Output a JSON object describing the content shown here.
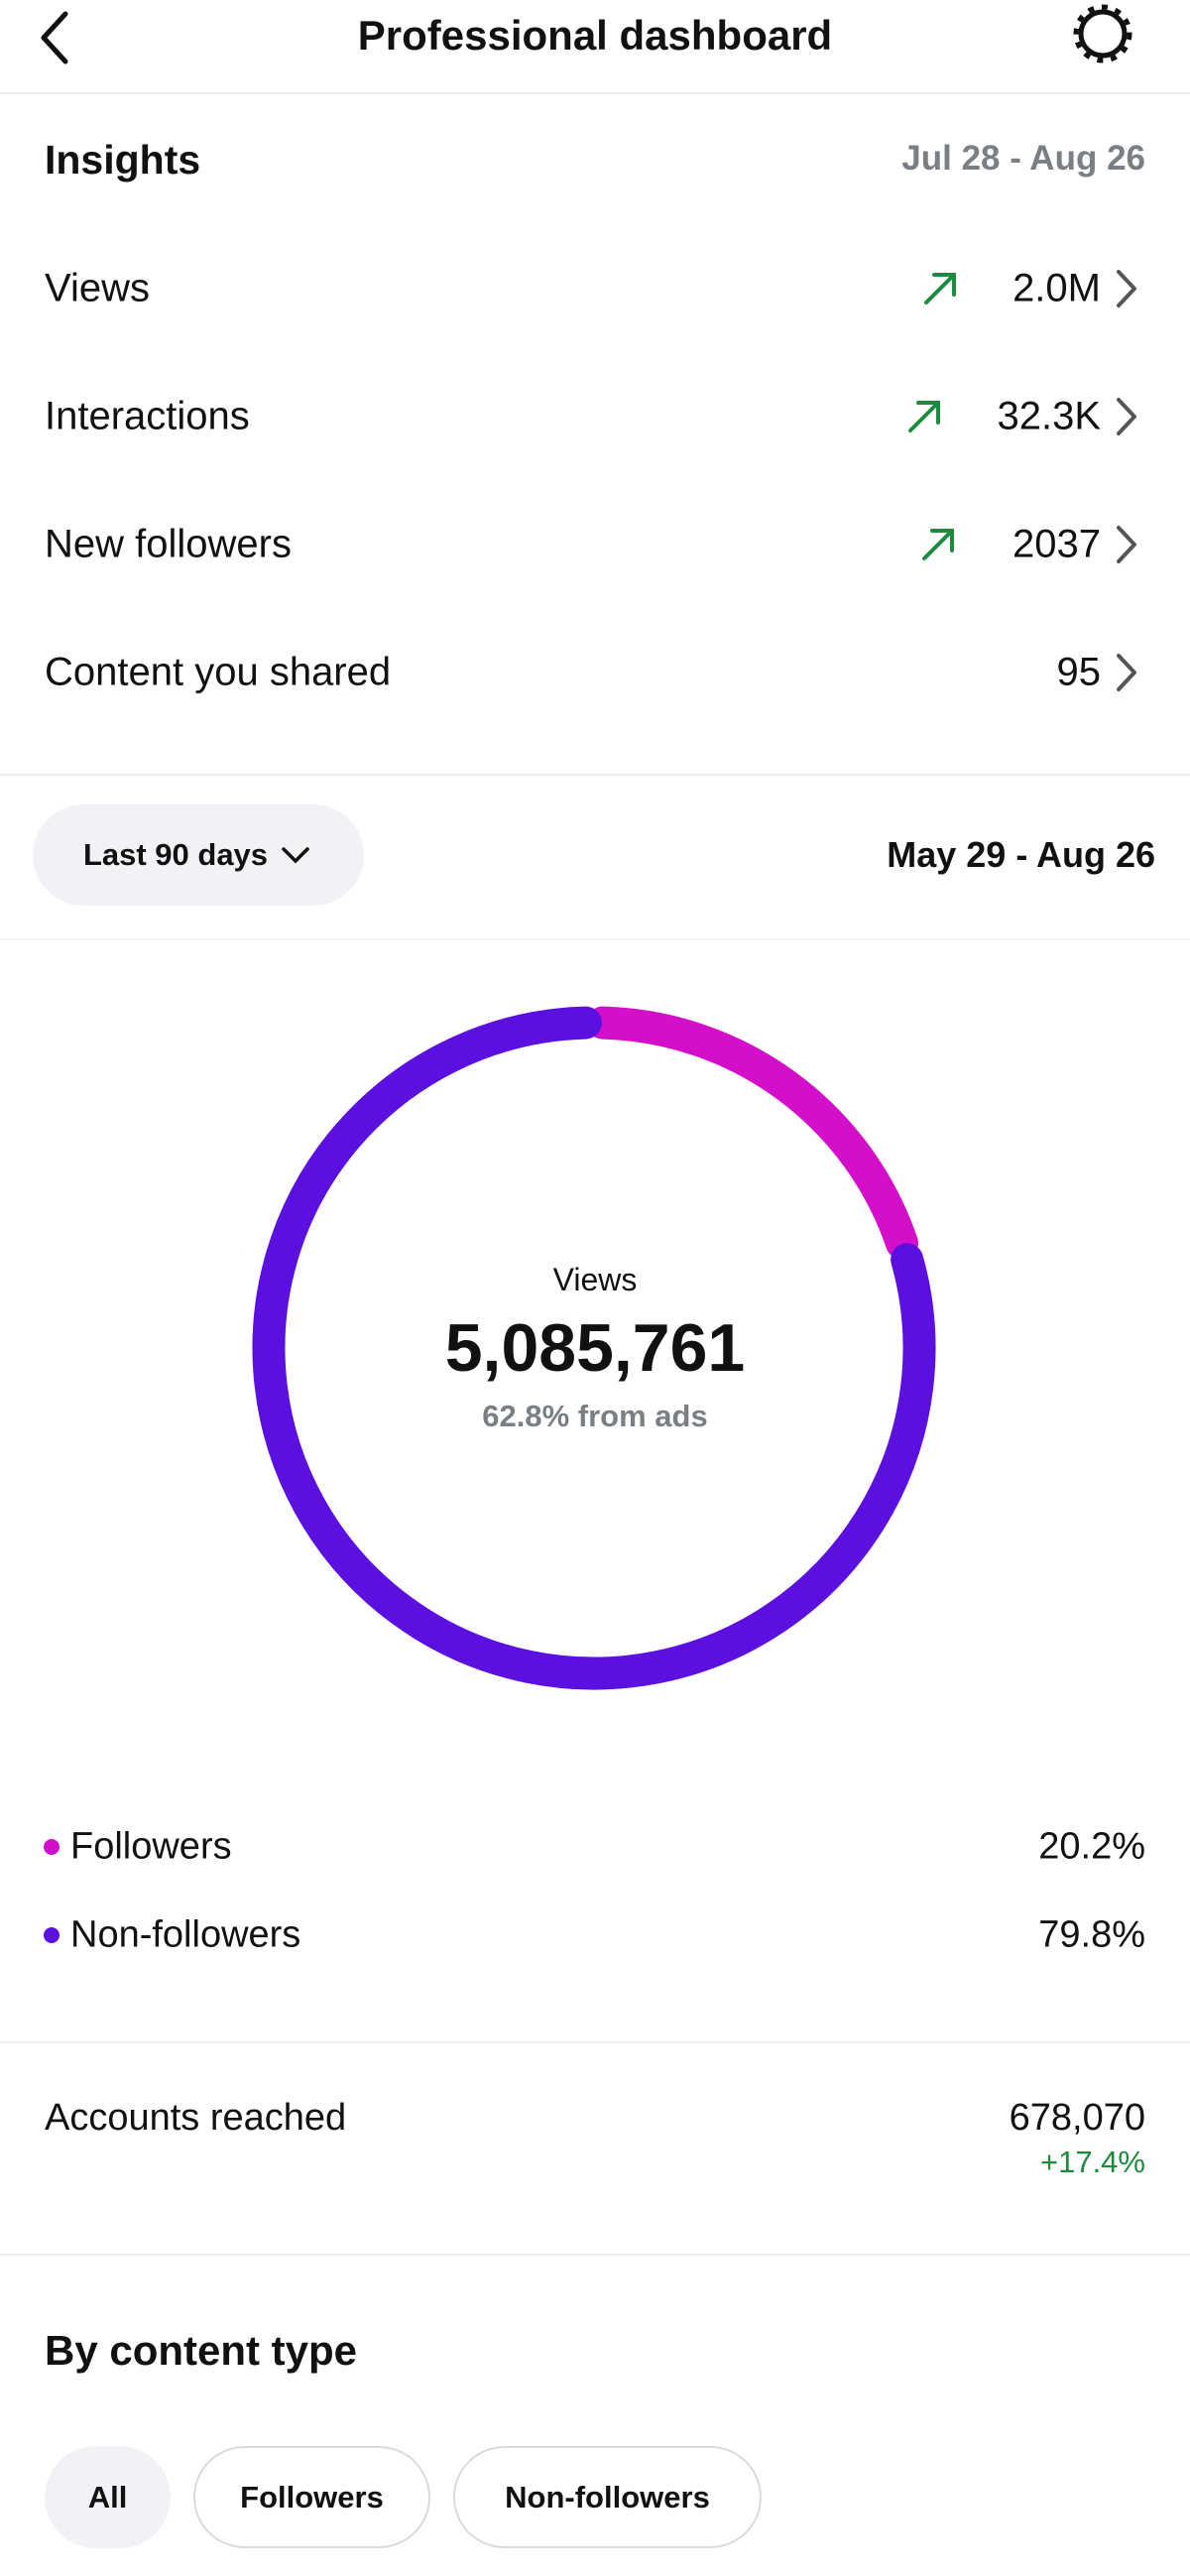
{
  "header": {
    "title": "Professional dashboard"
  },
  "insights": {
    "title": "Insights",
    "date_range": "Jul 28 - Aug 26",
    "rows": [
      {
        "label": "Views",
        "value": "2.0M"
      },
      {
        "label": "Interactions",
        "value": "32.3K"
      },
      {
        "label": "New followers",
        "value": "2037"
      },
      {
        "label": "Content you shared",
        "value": "95"
      }
    ]
  },
  "filter": {
    "period": "Last 90 days",
    "date_range": "May 29 - Aug 26"
  },
  "chart_data": {
    "type": "pie",
    "center_label": "Views",
    "center_value": "5,085,761",
    "center_note": "62.8% from ads",
    "categories": [
      "Followers",
      "Non-followers"
    ],
    "values": [
      20.2,
      79.8
    ],
    "value_labels": [
      "20.2%",
      "79.8%"
    ],
    "colors": [
      "#d30fc9",
      "#5b10df"
    ]
  },
  "reach": {
    "label": "Accounts reached",
    "value": "678,070",
    "change": "+17.4%"
  },
  "content_type": {
    "title": "By content type",
    "tabs": [
      "All",
      "Followers",
      "Non-followers"
    ]
  }
}
